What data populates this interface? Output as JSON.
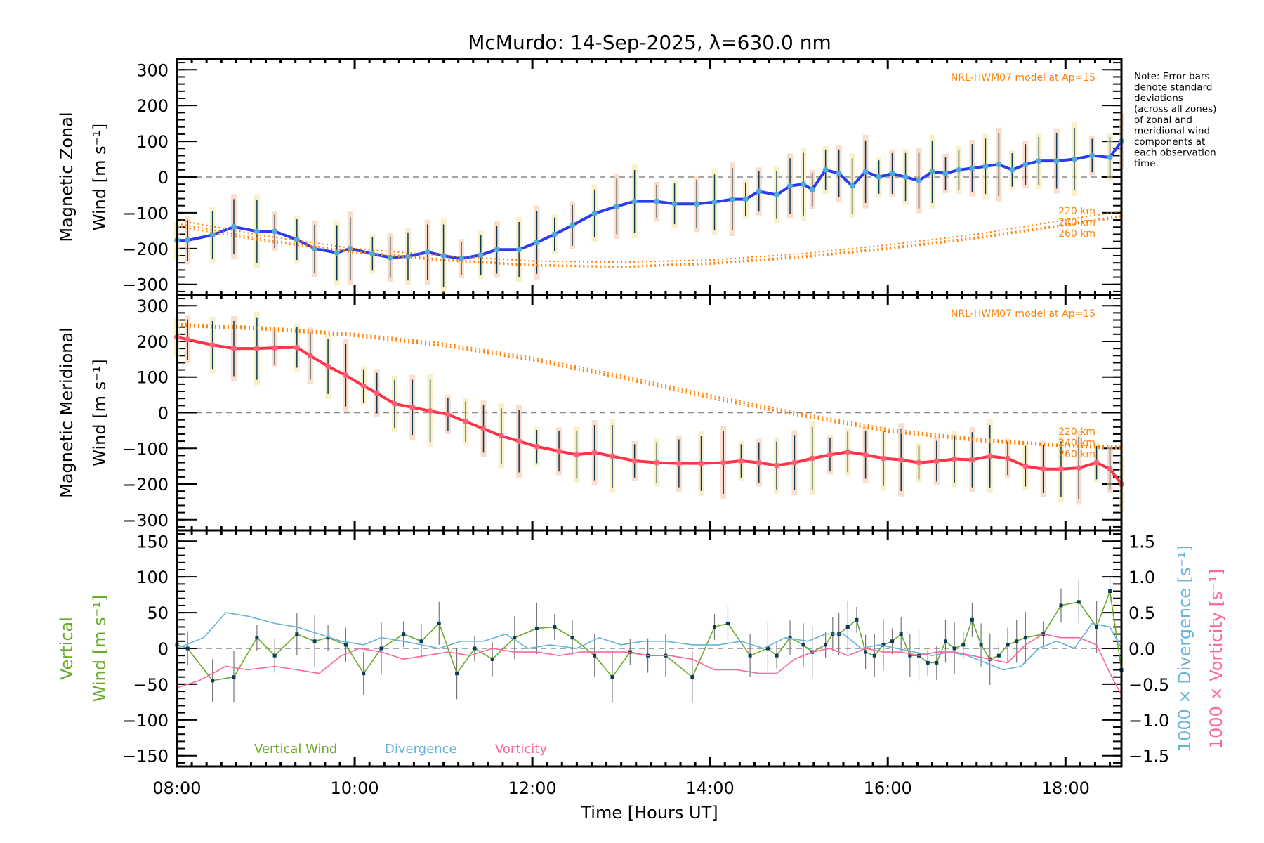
{
  "chart_data": {
    "type": "line",
    "title": "McMurdo: 14-Sep-2025, λ=630.0 nm",
    "xlabel": "Time [Hours UT]",
    "x_ticks": [
      "08:00",
      "10:00",
      "12:00",
      "14:00",
      "16:00",
      "18:00"
    ],
    "xlim_hours": [
      8.0,
      18.63
    ],
    "note_lines": [
      "Note: Error bars",
      "denote standard",
      "deviations",
      "(across all zones)",
      "of zonal and",
      "meridional wind",
      "components at",
      "each observation",
      "time."
    ],
    "panels": [
      {
        "id": "zonal",
        "ylabel_line1": "Magnetic Zonal",
        "ylabel_line2": "Wind [m s⁻¹]",
        "ylim": [
          -330,
          330
        ],
        "y_ticks": [
          -300,
          -200,
          -100,
          0,
          100,
          200,
          300
        ],
        "model_label": "NRL-HWM07 model at Ap=15",
        "altitude_labels": [
          "220 km",
          "240 km",
          "260 km"
        ],
        "series": [
          {
            "name": "Zonal Wind",
            "color": "#2b3cf0",
            "x": [
              8.0,
              8.12,
              8.4,
              8.64,
              8.9,
              9.1,
              9.35,
              9.55,
              9.8,
              9.95,
              10.2,
              10.4,
              10.6,
              10.82,
              11.0,
              11.2,
              11.42,
              11.6,
              11.85,
              12.05,
              12.25,
              12.45,
              12.7,
              12.95,
              13.15,
              13.4,
              13.6,
              13.85,
              14.05,
              14.25,
              14.4,
              14.55,
              14.75,
              14.9,
              15.05,
              15.15,
              15.3,
              15.45,
              15.6,
              15.75,
              15.9,
              16.05,
              16.2,
              16.35,
              16.5,
              16.65,
              16.8,
              16.95,
              17.1,
              17.25,
              17.4,
              17.55,
              17.7,
              17.9,
              18.1,
              18.3,
              18.5,
              18.63
            ],
            "y": [
              -177,
              -177,
              -162,
              -139,
              -152,
              -152,
              -175,
              -200,
              -212,
              -200,
              -215,
              -225,
              -222,
              -210,
              -220,
              -228,
              -218,
              -203,
              -203,
              -183,
              -160,
              -135,
              -102,
              -82,
              -68,
              -68,
              -75,
              -75,
              -70,
              -62,
              -62,
              -40,
              -50,
              -25,
              -20,
              -35,
              20,
              10,
              -25,
              15,
              0,
              10,
              0,
              -10,
              15,
              10,
              20,
              25,
              30,
              35,
              20,
              35,
              45,
              45,
              50,
              60,
              55,
              100
            ]
          },
          {
            "name": "HWM07 220 km",
            "color": "#ff8000",
            "dotted": true,
            "x": [
              8.0,
              9.0,
              10.0,
              11.0,
              12.0,
              13.0,
              14.0,
              15.0,
              16.0,
              17.0,
              18.0,
              18.63
            ],
            "y": [
              -120,
              -165,
              -200,
              -220,
              -235,
              -238,
              -232,
              -215,
              -190,
              -160,
              -120,
              -95
            ]
          },
          {
            "name": "HWM07 240 km",
            "color": "#ff8000",
            "dotted": true,
            "x": [
              8.0,
              9.0,
              10.0,
              11.0,
              12.0,
              13.0,
              14.0,
              15.0,
              16.0,
              17.0,
              18.0,
              18.63
            ],
            "y": [
              -130,
              -175,
              -208,
              -230,
              -245,
              -250,
              -240,
              -222,
              -198,
              -168,
              -132,
              -108
            ]
          },
          {
            "name": "HWM07 260 km",
            "color": "#ff8000",
            "dotted": true,
            "x": [
              8.0,
              9.0,
              10.0,
              11.0,
              12.0,
              13.0,
              14.0,
              15.0,
              16.0,
              17.0,
              18.0,
              18.63
            ],
            "y": [
              -138,
              -180,
              -212,
              -234,
              -248,
              -252,
              -244,
              -226,
              -202,
              -172,
              -136,
              -112
            ]
          }
        ]
      },
      {
        "id": "meridional",
        "ylabel_line1": "Magnetic Meridional",
        "ylabel_line2": "Wind [m s⁻¹]",
        "ylim": [
          -330,
          330
        ],
        "y_ticks": [
          -300,
          -200,
          -100,
          0,
          100,
          200,
          300
        ],
        "model_label": "NRL-HWM07 model at Ap=15",
        "altitude_labels": [
          "220 km",
          "240 km",
          "260 km"
        ],
        "series": [
          {
            "name": "Meridional Wind",
            "color": "#ff3344",
            "x": [
              8.0,
              8.12,
              8.4,
              8.64,
              8.9,
              9.1,
              9.35,
              9.5,
              9.7,
              9.9,
              10.1,
              10.25,
              10.45,
              10.65,
              10.85,
              11.05,
              11.25,
              11.45,
              11.65,
              11.85,
              12.05,
              12.3,
              12.5,
              12.7,
              12.9,
              13.15,
              13.4,
              13.65,
              13.9,
              14.15,
              14.35,
              14.55,
              14.75,
              14.95,
              15.15,
              15.35,
              15.55,
              15.75,
              15.95,
              16.15,
              16.35,
              16.55,
              16.75,
              16.95,
              17.15,
              17.35,
              17.55,
              17.75,
              17.95,
              18.15,
              18.35,
              18.5,
              18.63
            ],
            "y": [
              212,
              205,
              190,
              180,
              180,
              182,
              183,
              160,
              130,
              105,
              75,
              55,
              25,
              15,
              5,
              -5,
              -25,
              -45,
              -65,
              -80,
              -95,
              -108,
              -118,
              -112,
              -122,
              -135,
              -140,
              -142,
              -142,
              -140,
              -135,
              -140,
              -148,
              -140,
              -128,
              -118,
              -110,
              -118,
              -128,
              -132,
              -140,
              -136,
              -130,
              -132,
              -122,
              -128,
              -150,
              -158,
              -158,
              -155,
              -140,
              -158,
              -200
            ]
          },
          {
            "name": "HWM07 220 km",
            "color": "#ff8000",
            "dotted": true,
            "x": [
              8.0,
              9.0,
              10.0,
              11.0,
              12.0,
              13.0,
              14.0,
              15.0,
              16.0,
              17.0,
              18.0,
              18.63
            ],
            "y": [
              250,
              240,
              222,
              195,
              155,
              105,
              50,
              0,
              -45,
              -72,
              -90,
              -95
            ]
          },
          {
            "name": "HWM07 240 km",
            "color": "#ff8000",
            "dotted": true,
            "x": [
              8.0,
              9.0,
              10.0,
              11.0,
              12.0,
              13.0,
              14.0,
              15.0,
              16.0,
              17.0,
              18.0,
              18.63
            ],
            "y": [
              246,
              236,
              218,
              190,
              150,
              100,
              45,
              -5,
              -50,
              -76,
              -93,
              -98
            ]
          },
          {
            "name": "HWM07 260 km",
            "color": "#ff8000",
            "dotted": true,
            "x": [
              8.0,
              9.0,
              10.0,
              11.0,
              12.0,
              13.0,
              14.0,
              15.0,
              16.0,
              17.0,
              18.0,
              18.63
            ],
            "y": [
              242,
              232,
              214,
              186,
              146,
              96,
              40,
              -9,
              -54,
              -80,
              -96,
              -101
            ]
          }
        ]
      },
      {
        "id": "vertical",
        "ylabel_line1": "Vertical",
        "ylabel_line2": "Wind [m s⁻¹]",
        "ylim": [
          -165,
          165
        ],
        "y_ticks": [
          -150,
          -100,
          -50,
          0,
          50,
          100,
          150
        ],
        "right_ylim": [
          -1.65,
          1.65
        ],
        "right_y_ticks": [
          "-1.5",
          "-1.0",
          "-0.5",
          "0.0",
          "0.5",
          "1.0",
          "1.5"
        ],
        "right_ylabel_div": "1000 × Divergence [s⁻¹]",
        "right_ylabel_vor": "1000 × Vorticity [s⁻¹]",
        "legend": [
          "Vertical Wind",
          "Divergence",
          "Vorticity"
        ],
        "series": [
          {
            "name": "Vertical Wind",
            "color": "#6aaa2a",
            "markers": true,
            "axis": "left",
            "x": [
              8.0,
              8.12,
              8.4,
              8.64,
              8.9,
              9.1,
              9.35,
              9.55,
              9.7,
              9.9,
              10.1,
              10.3,
              10.55,
              10.75,
              10.95,
              11.15,
              11.35,
              11.55,
              11.8,
              12.05,
              12.25,
              12.45,
              12.7,
              12.9,
              13.1,
              13.3,
              13.5,
              13.8,
              14.05,
              14.2,
              14.45,
              14.65,
              14.75,
              14.9,
              15.05,
              15.15,
              15.3,
              15.38,
              15.45,
              15.55,
              15.65,
              15.75,
              15.85,
              15.95,
              16.05,
              16.15,
              16.25,
              16.35,
              16.45,
              16.55,
              16.65,
              16.75,
              16.85,
              16.95,
              17.05,
              17.15,
              17.25,
              17.35,
              17.45,
              17.55,
              17.75,
              17.95,
              18.15,
              18.35,
              18.5,
              18.63
            ],
            "y": [
              5,
              0,
              -45,
              -40,
              15,
              -10,
              20,
              10,
              15,
              5,
              -35,
              0,
              20,
              10,
              35,
              -35,
              0,
              -15,
              15,
              28,
              30,
              15,
              -10,
              -40,
              -5,
              -10,
              -10,
              -40,
              30,
              35,
              -10,
              0,
              -10,
              15,
              5,
              -5,
              5,
              20,
              20,
              30,
              40,
              -5,
              -10,
              5,
              10,
              20,
              -10,
              -10,
              -20,
              -20,
              10,
              0,
              5,
              40,
              5,
              -15,
              -10,
              5,
              10,
              15,
              20,
              60,
              65,
              30,
              80,
              -30
            ]
          },
          {
            "name": "Divergence",
            "color": "#66b2dd",
            "axis": "right",
            "x": [
              8.0,
              8.3,
              8.55,
              8.8,
              9.1,
              9.35,
              9.6,
              9.85,
              10.1,
              10.3,
              10.55,
              10.75,
              10.95,
              11.2,
              11.45,
              11.7,
              11.95,
              12.2,
              12.5,
              12.75,
              13.0,
              13.25,
              13.5,
              13.8,
              14.1,
              14.35,
              14.6,
              14.85,
              15.1,
              15.3,
              15.5,
              15.7,
              15.9,
              16.1,
              16.3,
              16.5,
              16.7,
              16.9,
              17.1,
              17.3,
              17.5,
              17.7,
              17.9,
              18.1,
              18.3,
              18.5,
              18.63
            ],
            "y": [
              0.0,
              0.15,
              0.5,
              0.45,
              0.35,
              0.3,
              0.2,
              0.1,
              0.05,
              0.15,
              0.1,
              0.05,
              0.0,
              0.1,
              0.1,
              0.2,
              0.0,
              0.05,
              0.0,
              0.15,
              0.05,
              0.1,
              0.1,
              0.05,
              0.05,
              0.1,
              0.0,
              0.15,
              0.1,
              0.2,
              0.2,
              0.0,
              0.05,
              0.0,
              -0.05,
              -0.1,
              -0.05,
              -0.1,
              -0.2,
              -0.3,
              -0.25,
              0.0,
              0.1,
              0.0,
              0.35,
              0.3,
              0.0
            ]
          },
          {
            "name": "Vorticity",
            "color": "#ff6699",
            "axis": "right",
            "x": [
              8.0,
              8.25,
              8.55,
              8.8,
              9.1,
              9.35,
              9.6,
              9.85,
              10.05,
              10.3,
              10.55,
              10.8,
              11.05,
              11.3,
              11.55,
              11.8,
              12.05,
              12.3,
              12.55,
              12.8,
              13.05,
              13.3,
              13.55,
              13.8,
              14.05,
              14.3,
              14.55,
              14.75,
              14.95,
              15.15,
              15.35,
              15.55,
              15.75,
              15.95,
              16.15,
              16.35,
              16.55,
              16.75,
              16.95,
              17.15,
              17.35,
              17.55,
              17.75,
              17.95,
              18.15,
              18.35,
              18.5,
              18.63
            ],
            "y": [
              -0.55,
              -0.45,
              -0.25,
              -0.3,
              -0.25,
              -0.3,
              -0.35,
              -0.1,
              0.0,
              -0.05,
              -0.15,
              -0.1,
              -0.05,
              -0.1,
              0.0,
              -0.05,
              -0.05,
              -0.1,
              -0.05,
              -0.05,
              -0.05,
              -0.1,
              -0.1,
              -0.15,
              -0.3,
              -0.3,
              -0.35,
              -0.35,
              -0.15,
              -0.05,
              0.0,
              -0.1,
              0.0,
              -0.05,
              -0.05,
              -0.1,
              -0.05,
              -0.05,
              -0.1,
              -0.15,
              -0.2,
              0.05,
              0.2,
              0.15,
              0.15,
              0.05,
              -0.35,
              -0.65
            ]
          }
        ]
      }
    ]
  }
}
